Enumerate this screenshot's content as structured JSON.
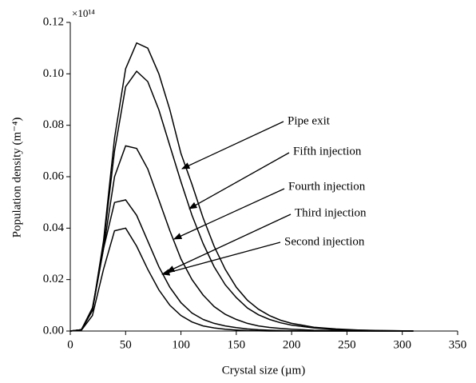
{
  "chart_data": {
    "type": "line",
    "x_label": "Crystal size (µm)",
    "y_label": "Population density (m⁻⁴)",
    "y_multiplier": "×10¹⁴",
    "x": [
      0,
      10,
      20,
      30,
      40,
      50,
      60,
      70,
      80,
      90,
      100,
      110,
      120,
      130,
      140,
      150,
      160,
      170,
      180,
      190,
      200,
      220,
      240,
      260,
      280,
      300,
      310
    ],
    "series": [
      {
        "name": "Pipe exit",
        "color": "#000000",
        "values": [
          0,
          0.0005,
          0.008,
          0.035,
          0.075,
          0.102,
          0.112,
          0.11,
          0.1,
          0.086,
          0.069,
          0.057,
          0.044,
          0.033,
          0.024,
          0.017,
          0.012,
          0.0085,
          0.006,
          0.0042,
          0.003,
          0.0015,
          0.0008,
          0.0004,
          0.0002,
          0.0001,
          0
        ]
      },
      {
        "name": "Fifth injection",
        "color": "#000000",
        "values": [
          0,
          0.0005,
          0.008,
          0.034,
          0.07,
          0.095,
          0.101,
          0.097,
          0.086,
          0.072,
          0.058,
          0.045,
          0.034,
          0.025,
          0.018,
          0.013,
          0.009,
          0.0063,
          0.0045,
          0.0032,
          0.0023,
          0.0012,
          0.0006,
          0.0003,
          0.00015,
          0.0001,
          0
        ]
      },
      {
        "name": "Fourth injection",
        "color": "#000000",
        "values": [
          0,
          0.0005,
          0.008,
          0.032,
          0.06,
          0.072,
          0.071,
          0.063,
          0.051,
          0.039,
          0.028,
          0.02,
          0.014,
          0.0095,
          0.0065,
          0.0045,
          0.003,
          0.002,
          0.0014,
          0.001,
          0.0007,
          0.0003,
          0.0002,
          0.0001,
          0,
          0,
          0
        ]
      },
      {
        "name": "Third injection",
        "color": "#000000",
        "values": [
          0,
          0.0005,
          0.009,
          0.032,
          0.05,
          0.051,
          0.045,
          0.035,
          0.025,
          0.017,
          0.011,
          0.007,
          0.0045,
          0.003,
          0.002,
          0.0013,
          0.0008,
          0.0005,
          0.0003,
          0.0002,
          0.0001,
          0,
          0,
          0,
          0,
          0,
          0
        ]
      },
      {
        "name": "Second injection",
        "color": "#000000",
        "values": [
          0,
          0.0003,
          0.006,
          0.024,
          0.039,
          0.04,
          0.033,
          0.024,
          0.016,
          0.01,
          0.006,
          0.0035,
          0.002,
          0.0012,
          0.0007,
          0.0004,
          0.0002,
          0.0001,
          0,
          0,
          0,
          0,
          0,
          0,
          0,
          0,
          0
        ]
      }
    ],
    "xlim": [
      0,
      350
    ],
    "xticks": [
      0,
      50,
      100,
      150,
      200,
      250,
      300,
      350
    ],
    "ylim": [
      0,
      0.12
    ],
    "yticks": [
      {
        "value": 0,
        "label": "0.00"
      },
      {
        "value": 0.02,
        "label": "0.02"
      },
      {
        "value": 0.04,
        "label": "0.04"
      },
      {
        "value": 0.06,
        "label": "0.06"
      },
      {
        "value": 0.08,
        "label": "0.08"
      },
      {
        "value": 0.1,
        "label": "0.10"
      },
      {
        "value": 0.12,
        "label": "0.12"
      }
    ],
    "grid": false
  }
}
